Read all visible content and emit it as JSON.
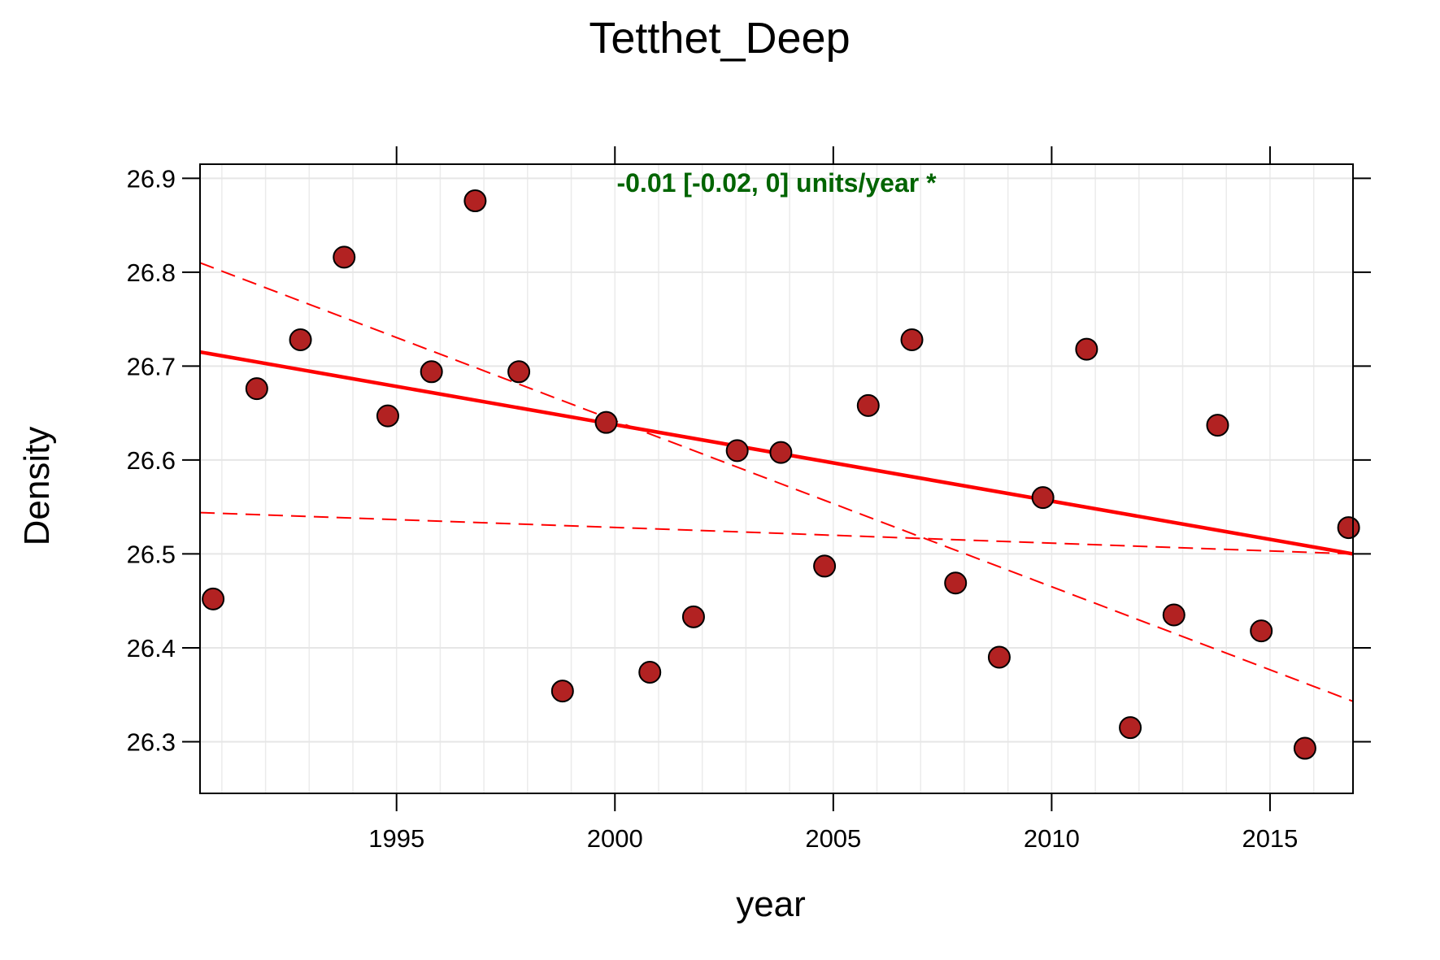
{
  "chart_data": {
    "type": "scatter",
    "title": "Tetthet_Deep",
    "xlabel": "year",
    "ylabel": "Density",
    "annotation": "-0.01 [-0.02, 0] units/year *",
    "xlim": [
      1990.5,
      2016.9
    ],
    "ylim": [
      26.245,
      26.915
    ],
    "x_ticks": [
      1995,
      2000,
      2005,
      2010,
      2015
    ],
    "y_ticks": [
      26.3,
      26.4,
      26.5,
      26.6,
      26.7,
      26.8,
      26.9
    ],
    "grid": true,
    "point_color": "#b22222",
    "line_color": "#ff0000",
    "x": [
      1990.8,
      1991.8,
      1992.8,
      1993.8,
      1994.8,
      1995.8,
      1996.8,
      1997.8,
      1998.8,
      1999.8,
      2000.8,
      2001.8,
      2002.8,
      2003.8,
      2004.8,
      2005.8,
      2006.8,
      2007.8,
      2008.8,
      2009.8,
      2010.8,
      2011.8,
      2012.8,
      2013.8,
      2014.8,
      2015.8,
      2016.8
    ],
    "y": [
      26.452,
      26.676,
      26.728,
      26.816,
      26.647,
      26.694,
      26.876,
      26.694,
      26.354,
      26.64,
      26.374,
      26.433,
      26.61,
      26.608,
      26.487,
      26.658,
      26.728,
      26.469,
      26.39,
      26.56,
      26.718,
      26.315,
      26.435,
      26.637,
      26.418,
      26.293,
      26.528
    ],
    "trend": {
      "name": "",
      "x": [
        1990.5,
        2016.9
      ],
      "y": [
        26.715,
        26.5
      ]
    },
    "ci_lines": [
      {
        "name": "",
        "x": [
          1990.5,
          2016.9
        ],
        "y": [
          26.81,
          26.343
        ]
      },
      {
        "name": "",
        "x": [
          1990.5,
          2016.9
        ],
        "y": [
          26.544,
          26.5
        ]
      }
    ]
  }
}
